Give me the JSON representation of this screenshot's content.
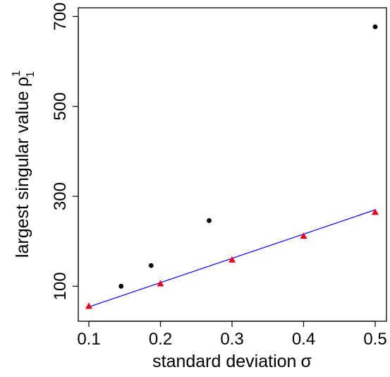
{
  "chart_data": {
    "type": "scatter",
    "xlabel": "standard deviation",
    "xlabel_symbol": "σ",
    "ylabel": "largest singular value",
    "ylabel_symbol": "ρ",
    "ylabel_superscript": "1",
    "ylabel_subscript": "1",
    "xlim": [
      0.1,
      0.5
    ],
    "ylim": [
      30,
      710
    ],
    "x_ticks": [
      0.1,
      0.2,
      0.3,
      0.4,
      0.5
    ],
    "x_tick_labels": [
      "0.1",
      "0.2",
      "0.3",
      "0.4",
      "0.5"
    ],
    "y_ticks": [
      100,
      300,
      500,
      700
    ],
    "y_tick_labels": [
      "100",
      "300",
      "500",
      "700"
    ],
    "grid": false,
    "legend": "none",
    "series": [
      {
        "marker": "circle",
        "color": "#000000",
        "points": [
          {
            "x": 0.145,
            "y": 100
          },
          {
            "x": 0.187,
            "y": 146
          },
          {
            "x": 0.268,
            "y": 246
          },
          {
            "x": 0.5,
            "y": 677
          }
        ]
      },
      {
        "marker": "triangle",
        "color": "#e8001c",
        "points": [
          {
            "x": 0.1,
            "y": 56
          },
          {
            "x": 0.2,
            "y": 106
          },
          {
            "x": 0.3,
            "y": 159
          },
          {
            "x": 0.4,
            "y": 212
          },
          {
            "x": 0.5,
            "y": 265
          }
        ]
      }
    ],
    "fit_line": {
      "color": "#0000ff",
      "from": {
        "x": 0.1,
        "y": 54
      },
      "to": {
        "x": 0.5,
        "y": 270
      }
    }
  }
}
